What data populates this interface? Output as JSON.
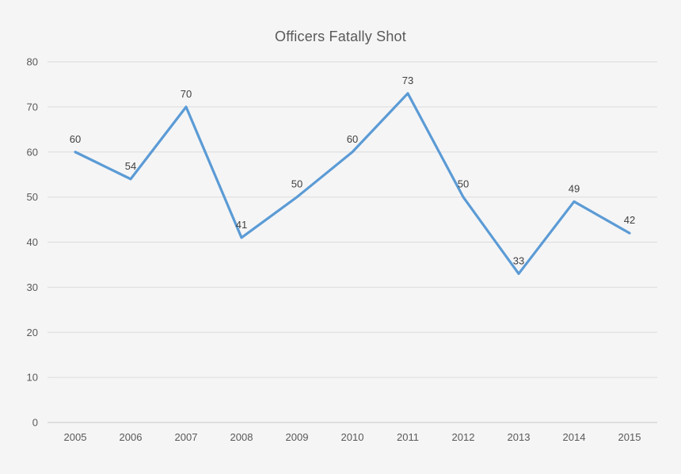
{
  "chart_data": {
    "type": "line",
    "title": "Officers Fatally Shot",
    "categories": [
      "2005",
      "2006",
      "2007",
      "2008",
      "2009",
      "2010",
      "2011",
      "2012",
      "2013",
      "2014",
      "2015"
    ],
    "values": [
      60,
      54,
      70,
      41,
      50,
      60,
      73,
      50,
      33,
      49,
      42
    ],
    "xlabel": "",
    "ylabel": "",
    "ylim": [
      0,
      80
    ],
    "ytick_step": 10,
    "grid": true,
    "legend": "none",
    "data_labels": true,
    "colors": {
      "background": "#f5f5f6",
      "line": "#5b9bd5",
      "gridline": "#dcdcdc",
      "axis_line": "#c6c6c6",
      "tick_label": "#595959",
      "data_label": "#404040",
      "title": "#595959"
    }
  }
}
